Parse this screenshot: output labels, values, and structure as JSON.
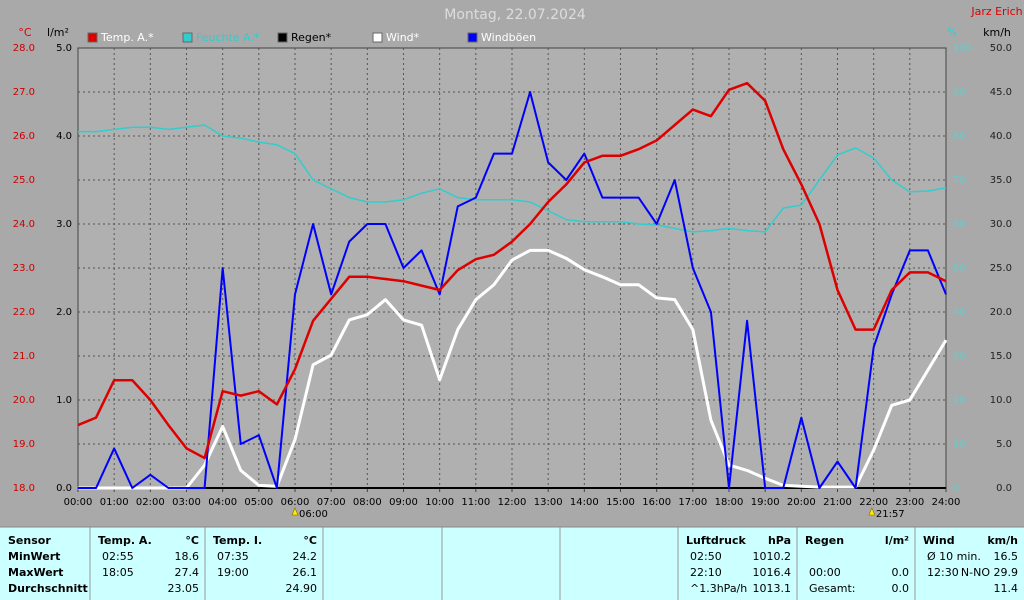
{
  "chart_data": {
    "type": "line",
    "title": "Montag, 22.07.2024",
    "author": "Jarz Erich",
    "y_label": "°C",
    "y2_label": "l/m²",
    "y3_label": "%",
    "y4_label": "km/h",
    "x": [
      0,
      0.5,
      1,
      1.5,
      2,
      2.5,
      3,
      3.5,
      4,
      4.5,
      5,
      5.5,
      6,
      6.5,
      7,
      7.5,
      8,
      8.5,
      9,
      9.5,
      10,
      10.5,
      11,
      11.5,
      12,
      12.5,
      13,
      13.5,
      14,
      14.5,
      15,
      15.5,
      16,
      16.5,
      17,
      17.5,
      18,
      18.5,
      19,
      19.5,
      20,
      20.5,
      21,
      21.5,
      22,
      22.5,
      23,
      23.5,
      24
    ],
    "xlim": [
      0,
      24
    ],
    "xticks": [
      {
        "value": 0,
        "label": "00:00"
      },
      {
        "value": 1,
        "label": "01:00"
      },
      {
        "value": 2,
        "label": "02:00"
      },
      {
        "value": 3,
        "label": "03:00"
      },
      {
        "value": 4,
        "label": "04:00"
      },
      {
        "value": 5,
        "label": "05:00"
      },
      {
        "value": 6,
        "label": "06:00"
      },
      {
        "value": 7,
        "label": "07:00"
      },
      {
        "value": 8,
        "label": "08:00"
      },
      {
        "value": 9,
        "label": "09:00"
      },
      {
        "value": 10,
        "label": "10:00"
      },
      {
        "value": 11,
        "label": "11:00"
      },
      {
        "value": 12,
        "label": "12:00"
      },
      {
        "value": 13,
        "label": "13:00"
      },
      {
        "value": 14,
        "label": "14:00"
      },
      {
        "value": 15,
        "label": "15:00"
      },
      {
        "value": 16,
        "label": "16:00"
      },
      {
        "value": 17,
        "label": "17:00"
      },
      {
        "value": 18,
        "label": "18:00"
      },
      {
        "value": 19,
        "label": "19:00"
      },
      {
        "value": 20,
        "label": "20:00"
      },
      {
        "value": 21,
        "label": "21:00"
      },
      {
        "value": 22,
        "label": "22:00"
      },
      {
        "value": 23,
        "label": "23:00"
      },
      {
        "value": 24,
        "label": "24:00"
      }
    ],
    "ylim": [
      18,
      28
    ],
    "yticks": [
      {
        "value": 18,
        "label": "18.0"
      },
      {
        "value": 19,
        "label": "19.0"
      },
      {
        "value": 20,
        "label": "20.0"
      },
      {
        "value": 21,
        "label": "21.0"
      },
      {
        "value": 22,
        "label": "22.0"
      },
      {
        "value": 23,
        "label": "23.0"
      },
      {
        "value": 24,
        "label": "24.0"
      },
      {
        "value": 25,
        "label": "25.0"
      },
      {
        "value": 26,
        "label": "26.0"
      },
      {
        "value": 27,
        "label": "27.0"
      },
      {
        "value": 28,
        "label": "28.0"
      }
    ],
    "y2lim": [
      0,
      5
    ],
    "y2ticks": [
      {
        "value": 0,
        "label": "0.0"
      },
      {
        "value": 1,
        "label": "1.0"
      },
      {
        "value": 2,
        "label": "2.0"
      },
      {
        "value": 3,
        "label": "3.0"
      },
      {
        "value": 4,
        "label": "4.0"
      },
      {
        "value": 5,
        "label": "5.0"
      }
    ],
    "y3lim": [
      0,
      100
    ],
    "y3ticks": [
      0,
      10,
      20,
      30,
      40,
      50,
      60,
      70,
      80,
      90,
      100
    ],
    "y4lim": [
      0,
      50
    ],
    "y4ticks": [
      {
        "value": 0,
        "label": "0.0"
      },
      {
        "value": 5,
        "label": "5.0"
      },
      {
        "value": 10,
        "label": "10.0"
      },
      {
        "value": 15,
        "label": "15.0"
      },
      {
        "value": 20,
        "label": "20.0"
      },
      {
        "value": 25,
        "label": "25.0"
      },
      {
        "value": 30,
        "label": "30.0"
      },
      {
        "value": 35,
        "label": "35.0"
      },
      {
        "value": 40,
        "label": "40.0"
      },
      {
        "value": 45,
        "label": "45.0"
      },
      {
        "value": 50,
        "label": "50.0"
      }
    ],
    "grid": true,
    "series": [
      {
        "name": "Feuchte A.*",
        "color": "#33cccc",
        "axis": "y3",
        "values": [
          81,
          81,
          81.5,
          82,
          82,
          81.5,
          82,
          82.5,
          80,
          79.5,
          78.6,
          78,
          76,
          70,
          68,
          66,
          65,
          65,
          65.5,
          67,
          68,
          66,
          65.5,
          65.5,
          65.5,
          65,
          63,
          61,
          60.5,
          60.5,
          60.5,
          60,
          59.8,
          59,
          58.2,
          58.5,
          59,
          58.5,
          58.2,
          63.6,
          64.3,
          70,
          75.7,
          77.3,
          75,
          70,
          67.3,
          67.5,
          68.2
        ]
      },
      {
        "name": "Regen*",
        "color": "#000000",
        "axis": "y2",
        "values": [
          0,
          0,
          0,
          0,
          0,
          0,
          0,
          0,
          0,
          0,
          0,
          0,
          0,
          0,
          0,
          0,
          0,
          0,
          0,
          0,
          0,
          0,
          0,
          0,
          0,
          0,
          0,
          0,
          0,
          0,
          0,
          0,
          0,
          0,
          0,
          0,
          0,
          0,
          0,
          0,
          0,
          0,
          0,
          0,
          0,
          0,
          0,
          0,
          0
        ]
      },
      {
        "name": "Wind*",
        "color": "#ffffff",
        "axis": "y4",
        "values": [
          0,
          0,
          0,
          0,
          0,
          0,
          0,
          2.6,
          7,
          2,
          0.3,
          0.2,
          5.5,
          14,
          15.1,
          19.1,
          19.7,
          21.4,
          19.1,
          18.5,
          12.3,
          18,
          21.4,
          23.1,
          25.9,
          27,
          27,
          26.1,
          24.8,
          24,
          23.1,
          23.1,
          21.6,
          21.4,
          18,
          7.7,
          2.6,
          2,
          1.1,
          0.3,
          0.2,
          0.1,
          0.1,
          0.1,
          4.3,
          9.4,
          10,
          13.4,
          16.8
        ]
      },
      {
        "name": "Windböen",
        "color": "#0000ff",
        "axis": "y4",
        "values": [
          0,
          0,
          4.5,
          0,
          1.5,
          0,
          0,
          0,
          25,
          5,
          6,
          0,
          22,
          30,
          22,
          28,
          30,
          30,
          25,
          27,
          22,
          32,
          33,
          38,
          38,
          45,
          37,
          35,
          38,
          33,
          33,
          33,
          30,
          35,
          25,
          20,
          0,
          19,
          0,
          0,
          8,
          0,
          3,
          0,
          16,
          22,
          27,
          27,
          22
        ]
      },
      {
        "name": "Temp. A.*",
        "color": "#dd0000",
        "axis": "y",
        "values": [
          19.43,
          19.6,
          20.45,
          20.45,
          20.0,
          19.43,
          18.9,
          18.68,
          20.2,
          20.1,
          20.2,
          19.9,
          20.7,
          21.8,
          22.3,
          22.8,
          22.8,
          22.75,
          22.7,
          22.6,
          22.5,
          22.95,
          23.2,
          23.3,
          23.6,
          24.0,
          24.5,
          24.9,
          25.4,
          25.55,
          25.55,
          25.7,
          25.9,
          26.25,
          26.6,
          26.45,
          27.05,
          27.2,
          26.8,
          25.7,
          24.9,
          24.0,
          22.5,
          21.6,
          21.6,
          22.5,
          22.9,
          22.9,
          22.7
        ]
      }
    ],
    "legend_order": [
      4,
      0,
      1,
      2,
      3
    ],
    "annotations": [
      {
        "x": 6,
        "label": "06:00"
      },
      {
        "x": 21.95,
        "label": "21:57"
      }
    ]
  },
  "table": {
    "columns": [
      {
        "header": "Sensor",
        "cells": [
          [
            "MinWert"
          ],
          [
            "MaxWert"
          ],
          [
            "Durchschnitt"
          ]
        ]
      },
      {
        "header": "Temp. A.",
        "unit": "°C",
        "cells": [
          [
            "02:55",
            "18.6"
          ],
          [
            "18:05",
            "27.4"
          ],
          [
            "23.05"
          ]
        ]
      },
      {
        "header": "Temp. I.",
        "unit": "°C",
        "cells": [
          [
            "07:35",
            "24.2"
          ],
          [
            "19:00",
            "26.1"
          ],
          [
            "24.90"
          ]
        ]
      },
      {
        "header": "Luftdruck",
        "unit": "hPa",
        "cells": [
          [
            "02:50",
            "1010.2"
          ],
          [
            "22:10",
            "1016.4"
          ],
          [
            "^1.3hPa/h",
            "1013.1"
          ]
        ]
      },
      {
        "header": "Regen",
        "unit": "l/m²",
        "cells": [
          [],
          [
            "00:00",
            "0.0"
          ],
          [
            "Gesamt:",
            "0.0"
          ]
        ]
      },
      {
        "header": "Wind",
        "unit": "km/h",
        "cells": [
          [
            "Ø 10 min.",
            "16.5"
          ],
          [
            "12:30",
            "N-NO 29.9"
          ],
          [
            "11.4"
          ]
        ]
      }
    ]
  }
}
